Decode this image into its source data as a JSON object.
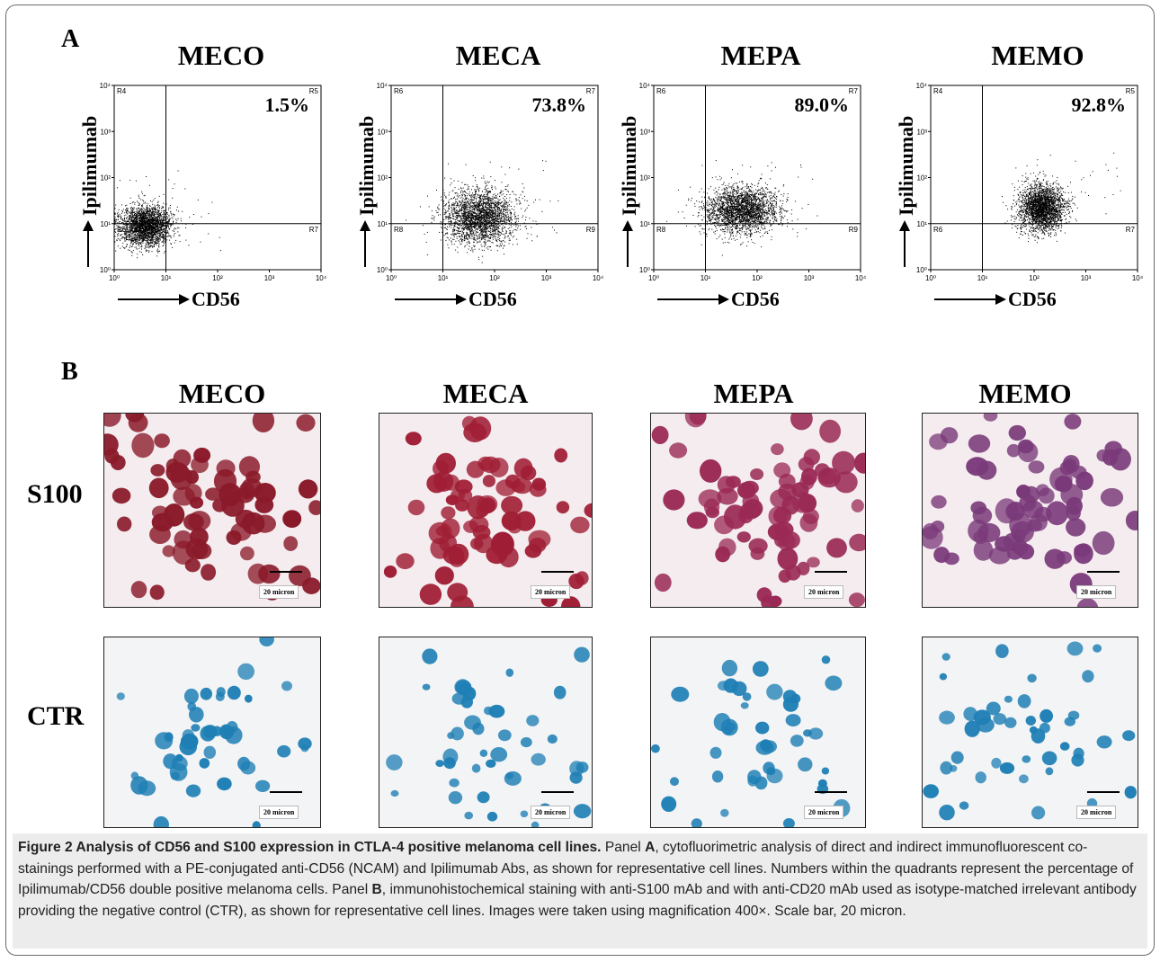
{
  "panel_a_letter": "A",
  "panel_b_letter": "B",
  "y_axis_label": "Ipilimumab",
  "x_axis_label": "CD56",
  "x_ticks": [
    "10⁰",
    "10¹",
    "10²",
    "10³",
    "10⁴"
  ],
  "y_ticks": [
    "10⁰",
    "10¹",
    "10²",
    "10³",
    "10⁴"
  ],
  "chart_data": [
    {
      "type": "scatter",
      "title": "MECO",
      "xlabel": "CD56",
      "ylabel": "Ipilimumab",
      "scale": "log",
      "xlim": [
        1,
        10000
      ],
      "ylim": [
        1,
        10000
      ],
      "quadrant_percent": "1.5%",
      "region_labels": [
        "R4",
        "R5",
        "R6",
        "R7"
      ],
      "gate": {
        "x": 10,
        "y": 10
      },
      "cluster": {
        "x_center": 4,
        "y_center": 9,
        "x_spread_log": 0.25,
        "y_spread_log": 0.22
      }
    },
    {
      "type": "scatter",
      "title": "MECA",
      "xlabel": "CD56",
      "ylabel": "Ipilimumab",
      "scale": "log",
      "xlim": [
        1,
        10000
      ],
      "ylim": [
        1,
        10000
      ],
      "quadrant_percent": "73.8%",
      "region_labels": [
        "R6",
        "R7",
        "R8",
        "R9"
      ],
      "gate": {
        "x": 10,
        "y": 10
      },
      "cluster": {
        "x_center": 50,
        "y_center": 14,
        "x_spread_log": 0.35,
        "y_spread_log": 0.3
      }
    },
    {
      "type": "scatter",
      "title": "MEPA",
      "xlabel": "CD56",
      "ylabel": "Ipilimumab",
      "scale": "log",
      "xlim": [
        1,
        10000
      ],
      "ylim": [
        1,
        10000
      ],
      "quadrant_percent": "89.0%",
      "region_labels": [
        "R6",
        "R7",
        "R8",
        "R9"
      ],
      "gate": {
        "x": 10,
        "y": 10
      },
      "cluster": {
        "x_center": 50,
        "y_center": 20,
        "x_spread_log": 0.35,
        "y_spread_log": 0.25
      }
    },
    {
      "type": "scatter",
      "title": "MEMO",
      "xlabel": "CD56",
      "ylabel": "Ipilimumab",
      "scale": "log",
      "xlim": [
        1,
        10000
      ],
      "ylim": [
        1,
        10000
      ],
      "quadrant_percent": "92.8%",
      "region_labels": [
        "R4",
        "R5",
        "R6",
        "R7"
      ],
      "gate": {
        "x": 10,
        "y": 10
      },
      "cluster": {
        "x_center": 140,
        "y_center": 22,
        "x_spread_log": 0.22,
        "y_spread_log": 0.25
      }
    }
  ],
  "panel_b": {
    "columns": [
      "MECO",
      "MECA",
      "MEPA",
      "MEMO"
    ],
    "rows": [
      {
        "label": "S100",
        "scale_label": "20 micron",
        "cell_colors": [
          "#8a1a2a",
          "#a01e35",
          "#9a2a55",
          "#7a3a7a"
        ]
      },
      {
        "label": "CTR",
        "scale_label": "20 micron",
        "cell_colors": [
          "#1f7fb5",
          "#1f7fb5",
          "#1f7fb5",
          "#1f7fb5"
        ]
      }
    ]
  },
  "caption": {
    "figure_title": "Figure 2 Analysis of CD56 and S100 expression in CTLA-4 positive melanoma cell lines.",
    "t1": " Panel ",
    "a": "A",
    "t2": ", cytofluorimetric analysis of direct and indirect immunofluorescent co-stainings performed with a PE-conjugated anti-CD56 (NCAM) and Ipilimumab Abs, as shown for representative cell lines. Numbers within the quadrants represent the percentage of Ipilimumab/CD56 double positive melanoma cells. Panel ",
    "b": "B",
    "t3": ", immunohistochemical staining with anti-S100 mAb and with anti-CD20 mAb used as isotype-matched irrelevant antibody providing the negative control (CTR), as shown for representative cell lines. Images were taken using magnification 400×. Scale bar, 20 micron."
  }
}
